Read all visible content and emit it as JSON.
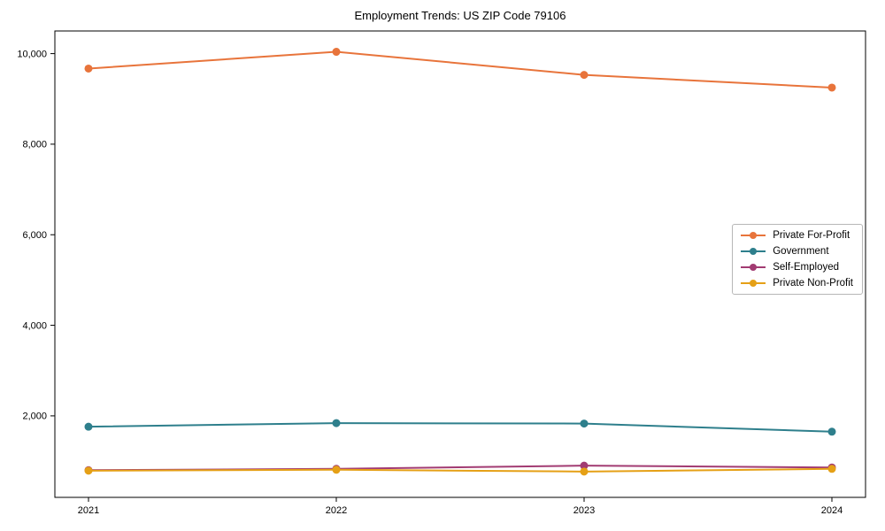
{
  "chart_data": {
    "type": "line",
    "title": "Employment Trends: US ZIP Code 79106",
    "categories": [
      "2021",
      "2022",
      "2023",
      "2024"
    ],
    "series": [
      {
        "name": "Private For-Profit",
        "color": "#e8743b",
        "values": [
          9670,
          10040,
          9530,
          9250
        ]
      },
      {
        "name": "Government",
        "color": "#2e7f8c",
        "values": [
          1760,
          1840,
          1830,
          1650
        ]
      },
      {
        "name": "Self-Employed",
        "color": "#a23b72",
        "values": [
          800,
          830,
          900,
          860
        ]
      },
      {
        "name": "Private Non-Profit",
        "color": "#e5a016",
        "values": [
          790,
          810,
          770,
          830
        ]
      }
    ],
    "xlabel": "",
    "ylabel": "",
    "ylim": [
      200,
      10500
    ],
    "yticks": [
      2000,
      4000,
      6000,
      8000,
      10000
    ],
    "ytick_labels": [
      "2,000",
      "4,000",
      "6,000",
      "8,000",
      "10,000"
    ],
    "grid": false,
    "legend_position": "middle-right",
    "marker": "circle"
  }
}
